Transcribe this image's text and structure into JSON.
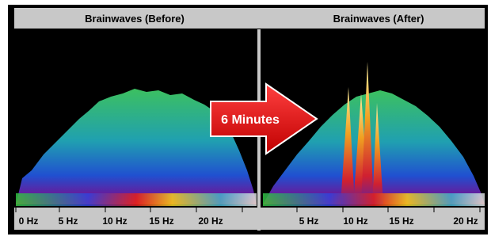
{
  "panels": [
    {
      "title": "Brainwaves (Before)",
      "ticks": [
        "0 Hz",
        "5 Hz",
        "10 Hz",
        "15 Hz",
        "20 Hz"
      ]
    },
    {
      "title": "Brainwaves (After)",
      "ticks": [
        "5 Hz",
        "10 Hz",
        "15 Hz",
        "20 Hz"
      ]
    }
  ],
  "arrow": {
    "label": "6 Minutes"
  }
}
